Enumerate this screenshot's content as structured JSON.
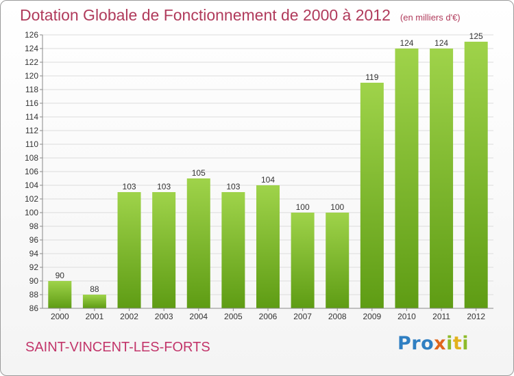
{
  "title": "Dotation Globale de Fonctionnement de 2000 à 2012",
  "subtitle": "(en milliers d'€)",
  "place": "SAINT-VINCENT-LES-FORTS",
  "logo": {
    "p1": "Pro",
    "p2": "x",
    "p3": "i",
    "p4": "t",
    "p5": "i"
  },
  "colors": {
    "bar_top": "#9fd34a",
    "bar_bottom": "#5e9c14",
    "title": "#b03a5b",
    "place": "#c2356a"
  },
  "chart_data": {
    "type": "bar",
    "categories": [
      "2000",
      "2001",
      "2002",
      "2003",
      "2004",
      "2005",
      "2006",
      "2007",
      "2008",
      "2009",
      "2010",
      "2011",
      "2012"
    ],
    "values": [
      90,
      88,
      103,
      103,
      105,
      103,
      104,
      100,
      100,
      119,
      124,
      124,
      125
    ],
    "ylim": [
      86,
      126
    ],
    "yticks": [
      86,
      88,
      90,
      92,
      94,
      96,
      98,
      100,
      102,
      104,
      106,
      108,
      110,
      112,
      114,
      116,
      118,
      120,
      122,
      124,
      126
    ],
    "grid": true,
    "xlabel": "",
    "ylabel": ""
  }
}
